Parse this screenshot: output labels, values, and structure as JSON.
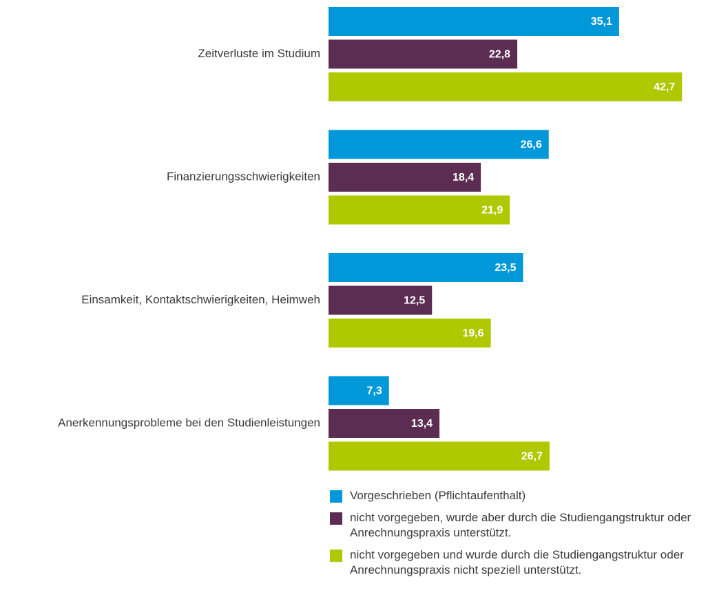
{
  "chart_data": {
    "type": "bar",
    "orientation": "horizontal",
    "categories": [
      "Zeitverluste im Studium",
      "Finanzierungsschwierigkeiten",
      "Einsamkeit, Kontaktschwierigkeiten, Heimweh",
      "Anerkennungsprobleme bei den Studienleistungen"
    ],
    "series": [
      {
        "name": "Vorgeschrieben (Pflichtaufenthalt)",
        "color": "#0098d8",
        "values": [
          35.1,
          26.6,
          23.5,
          7.3
        ],
        "value_labels": [
          "35,1",
          "26,6",
          "23,5",
          "7,3"
        ]
      },
      {
        "name": "nicht vorgegeben, wurde aber durch die Studiengangstruktur oder Anrechnungspraxis unterstützt.",
        "color": "#5c2d52",
        "values": [
          22.8,
          18.4,
          12.5,
          13.4
        ],
        "value_labels": [
          "22,8",
          "18,4",
          "12,5",
          "13,4"
        ]
      },
      {
        "name": "nicht vorgegeben und wurde durch die Studiengangstruktur oder Anrechnungspraxis nicht speziell unterstützt.",
        "color": "#afc800",
        "values": [
          42.7,
          21.9,
          19.6,
          26.7
        ],
        "value_labels": [
          "42,7",
          "21,9",
          "19,6",
          "26,7"
        ]
      }
    ],
    "legend": "bottom"
  }
}
